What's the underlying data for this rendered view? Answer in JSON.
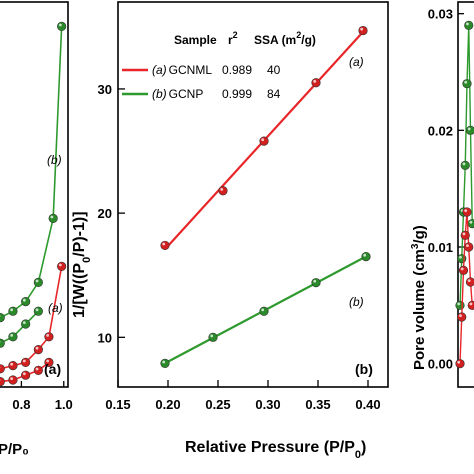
{
  "colors": {
    "red": "#e8262a",
    "green": "#2e9a2e",
    "marker_red": "#d22020",
    "marker_green": "#2a8a2a"
  },
  "chart_data": [
    {
      "type": "line",
      "panel_label": "(a)",
      "x_ticks": [
        "0.8",
        "1.0"
      ],
      "x_tick_values": [
        0.8,
        1.0
      ],
      "xlabel": "P/P₀",
      "xlim": [
        0.68,
        1.02
      ],
      "ylim": [
        0,
        10
      ],
      "series": [
        {
          "name": "(a)",
          "color": "red",
          "x": [
            0.7,
            0.76,
            0.82,
            0.88,
            0.93,
            0.99
          ],
          "y": [
            1.6,
            1.7,
            1.8,
            2.2,
            2.6,
            4.8
          ]
        },
        {
          "name": "",
          "color": "red",
          "x": [
            0.7,
            0.76,
            0.82,
            0.88,
            0.93
          ],
          "y": [
            1.2,
            1.25,
            1.4,
            1.55,
            1.8
          ]
        },
        {
          "name": "(b)",
          "color": "green",
          "x": [
            0.7,
            0.76,
            0.82,
            0.88,
            0.95,
            0.99
          ],
          "y": [
            3.2,
            3.4,
            3.7,
            4.3,
            6.3,
            12.3
          ]
        },
        {
          "name": "",
          "color": "green",
          "x": [
            0.7,
            0.76,
            0.82,
            0.88
          ],
          "y": [
            2.4,
            2.6,
            3.0,
            3.4
          ]
        }
      ],
      "annotations": [
        "(a)",
        "(b)"
      ]
    },
    {
      "type": "scatter",
      "panel_label": "(b)",
      "xlabel": "Relative Pressure (P/P",
      "xlabel_sub": "0",
      "xlabel_end": ")",
      "ylabel": "1/[W((P",
      "ylabel_sub": "0",
      "ylabel_end": "/P)-1)]",
      "xlim": [
        0.15,
        0.42
      ],
      "ylim": [
        6,
        37
      ],
      "x_ticks": [
        "0.15",
        "0.20",
        "0.25",
        "0.30",
        "0.35",
        "0.40"
      ],
      "x_tick_values": [
        0.15,
        0.2,
        0.25,
        0.3,
        0.35,
        0.4
      ],
      "y_ticks": [
        "10",
        "20",
        "30"
      ],
      "y_tick_values": [
        10,
        20,
        30
      ],
      "series": [
        {
          "name": "(a) GCNML",
          "color": "red",
          "x": [
            0.197,
            0.255,
            0.296,
            0.348,
            0.395
          ],
          "y": [
            17.4,
            21.8,
            25.8,
            30.5,
            34.7
          ]
        },
        {
          "name": "(b) GCNP",
          "color": "green",
          "x": [
            0.197,
            0.245,
            0.296,
            0.348,
            0.398
          ],
          "y": [
            7.9,
            10.0,
            12.1,
            14.4,
            16.5
          ]
        }
      ],
      "legend": {
        "header": {
          "sample": "Sample",
          "r2": "r",
          "r2_sup": "2",
          "ssa": "SSA (m",
          "ssa_sup": "2",
          "ssa_end": "/g)"
        },
        "rows": [
          {
            "tag": "(a)",
            "name": "GCNML",
            "r2": "0.989",
            "ssa": "40",
            "color": "red"
          },
          {
            "tag": "(b)",
            "name": "GCNP",
            "r2": "0.999",
            "ssa": "84",
            "color": "green"
          }
        ]
      },
      "annotations": [
        "(a)",
        "(b)"
      ]
    },
    {
      "type": "line",
      "ylabel": "Pore volume (cm",
      "ylabel_sup": "3",
      "ylabel_end": "/g)",
      "ylim": [
        -0.002,
        0.031
      ],
      "y_ticks": [
        "0.00",
        "0.01",
        "0.02",
        "0.03"
      ],
      "y_tick_values": [
        0.0,
        0.01,
        0.02,
        0.03
      ],
      "series": [
        {
          "name": "green",
          "color": "green",
          "x": [
            1.0,
            1.5,
            2.0,
            2.5,
            3.0,
            3.5,
            4.0,
            4.5
          ],
          "y": [
            0.005,
            0.009,
            0.013,
            0.017,
            0.024,
            0.029,
            0.02,
            0.012
          ]
        },
        {
          "name": "red",
          "color": "red",
          "x": [
            1.0,
            1.5,
            2.0,
            2.5,
            3.0,
            3.5,
            4.0,
            4.5
          ],
          "y": [
            0.0,
            0.004,
            0.008,
            0.011,
            0.013,
            0.01,
            0.007,
            0.005
          ]
        }
      ]
    }
  ]
}
